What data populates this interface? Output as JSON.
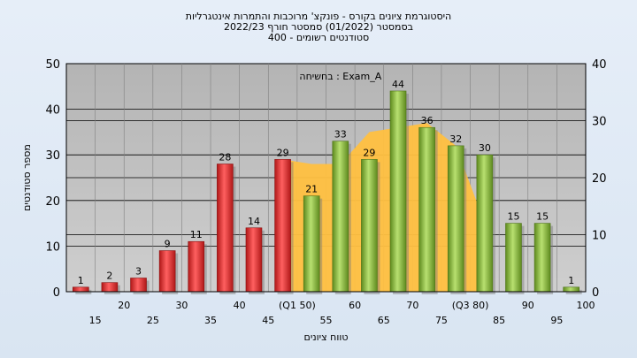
{
  "chart_data": {
    "type": "bar",
    "title_lines": [
      "היסטוגרמת ציונים בקורס - פונקצ' מרוכבות והתמרות אינטגרליות",
      "בסמסטר  (01/2022)  סמסטר חורף 2022/23",
      "סטודנטים רשומים - 400"
    ],
    "annotation": "בחשיחה : Exam_A",
    "ylabel": "מספר סטודנטים",
    "xlabel": "טווח ציונים",
    "ylim": [
      0,
      50
    ],
    "ylim_right": [
      0,
      40
    ],
    "yticks": [
      0,
      10,
      20,
      30,
      40,
      50
    ],
    "yticks_right": [
      0,
      10,
      20,
      30,
      40
    ],
    "grid": true,
    "categories": [
      "15",
      "20",
      "25",
      "30",
      "35",
      "40",
      "45",
      "(Q1 50)",
      "55",
      "60",
      "65",
      "70",
      "75",
      "(Q3 80)",
      "85",
      "90",
      "95",
      "100"
    ],
    "values": [
      1,
      2,
      3,
      9,
      11,
      28,
      14,
      29,
      21,
      33,
      29,
      44,
      36,
      32,
      30,
      15,
      15,
      1
    ],
    "bar_colors": [
      "#e03030",
      "#e03030",
      "#e03030",
      "#e03030",
      "#e03030",
      "#e03030",
      "#e03030",
      "#e03030",
      "#8cc040",
      "#8cc040",
      "#8cc040",
      "#8cc040",
      "#8cc040",
      "#8cc040",
      "#8cc040",
      "#8cc040",
      "#8cc040",
      "#8cc040"
    ],
    "area": {
      "color": "#ffc040",
      "points": [
        [
          7,
          29
        ],
        [
          8,
          28
        ],
        [
          9,
          28
        ],
        [
          10,
          35
        ],
        [
          11,
          36
        ],
        [
          12,
          37
        ],
        [
          13,
          32
        ],
        [
          14,
          15
        ]
      ]
    },
    "colors": {
      "plot_bg": "#c0c0c0",
      "red": "#e03030",
      "green": "#8cc040",
      "area": "#ffc040"
    }
  }
}
